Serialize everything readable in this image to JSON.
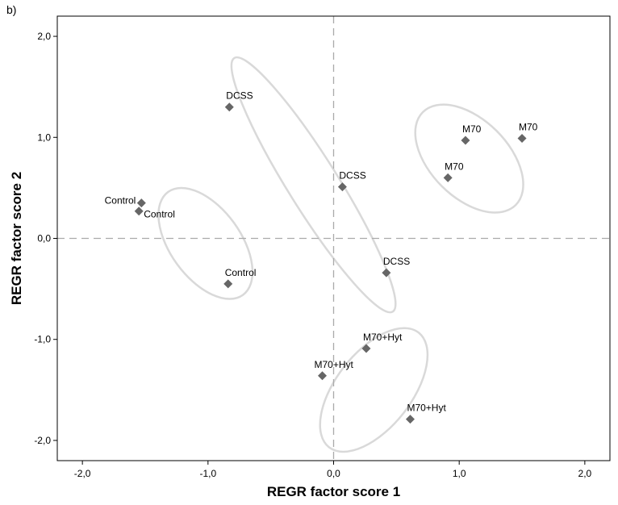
{
  "panel_label": "b)",
  "chart_data": {
    "type": "scatter",
    "xlabel": "REGR factor score 1",
    "ylabel": "REGR factor score 2",
    "xlim": [
      -2.2,
      2.2
    ],
    "ylim": [
      -2.2,
      2.2
    ],
    "x_ticks": [
      {
        "value": -2.0,
        "label": "-2,0"
      },
      {
        "value": -1.0,
        "label": "-1,0"
      },
      {
        "value": 0.0,
        "label": "0,0"
      },
      {
        "value": 1.0,
        "label": "1,0"
      },
      {
        "value": 2.0,
        "label": "2,0"
      }
    ],
    "y_ticks": [
      {
        "value": 2.0,
        "label": "2,0"
      },
      {
        "value": 1.0,
        "label": "1,0"
      },
      {
        "value": 0.0,
        "label": "0,0"
      },
      {
        "value": -1.0,
        "label": "-1,0"
      },
      {
        "value": -2.0,
        "label": "-2,0"
      }
    ],
    "reference_lines": {
      "x": 0.0,
      "y": 0.0,
      "style": "dashed"
    },
    "points": [
      {
        "label": "DCSS",
        "x": -0.83,
        "y": 1.3,
        "label_position": "above-right"
      },
      {
        "label": "DCSS",
        "x": 0.07,
        "y": 0.51,
        "label_position": "above-right"
      },
      {
        "label": "DCSS",
        "x": 0.42,
        "y": -0.34,
        "label_position": "above-right"
      },
      {
        "label": "M70",
        "x": 1.05,
        "y": 0.97,
        "label_position": "above-right"
      },
      {
        "label": "M70",
        "x": 1.5,
        "y": 0.99,
        "label_position": "above-right"
      },
      {
        "label": "M70",
        "x": 0.91,
        "y": 0.6,
        "label_position": "above-right"
      },
      {
        "label": "Control",
        "x": -1.53,
        "y": 0.35,
        "label_position": "left"
      },
      {
        "label": "Control",
        "x": -1.55,
        "y": 0.27,
        "label_position": "right"
      },
      {
        "label": "Control",
        "x": -0.84,
        "y": -0.45,
        "label_position": "above-right"
      },
      {
        "label": "M70+Hyt",
        "x": 0.26,
        "y": -1.09,
        "label_position": "above-right"
      },
      {
        "label": "M70+Hyt",
        "x": -0.09,
        "y": -1.36,
        "label_position": "above-left"
      },
      {
        "label": "M70+Hyt",
        "x": 0.61,
        "y": -1.79,
        "label_position": "above-right"
      }
    ],
    "groups": [
      {
        "name": "Control",
        "cx": -1.02,
        "cy": -0.05,
        "rx": 0.28,
        "ry": 0.63,
        "rotation_deg": -36
      },
      {
        "name": "DCSS",
        "cx": -0.16,
        "cy": 0.53,
        "rx": 0.2,
        "ry": 1.48,
        "rotation_deg": -32
      },
      {
        "name": "M70",
        "cx": 1.08,
        "cy": 0.79,
        "rx": 0.31,
        "ry": 0.65,
        "rotation_deg": -45
      },
      {
        "name": "M70+Hyt",
        "cx": 0.32,
        "cy": -1.5,
        "rx": 0.3,
        "ry": 0.72,
        "rotation_deg": 38
      }
    ],
    "grid": false,
    "marker": "diamond",
    "marker_color": "#666666",
    "ellipse_color": "#d9d9d9",
    "reference_line_color": "#aaaaaa",
    "axis_color": "#000000"
  }
}
